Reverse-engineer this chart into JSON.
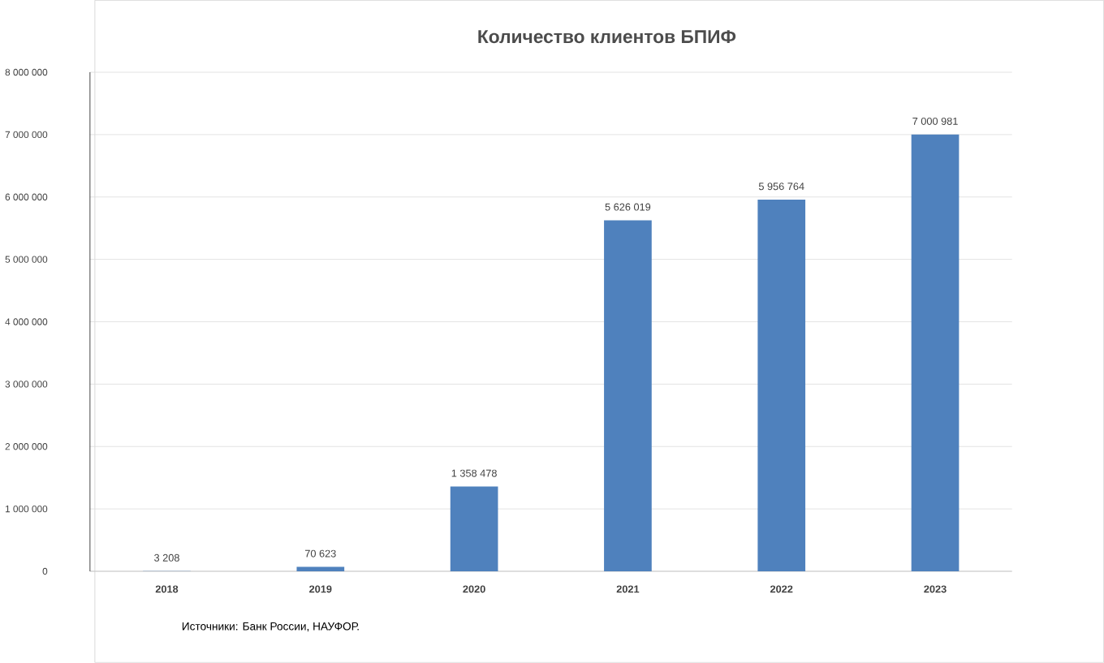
{
  "chart_data": {
    "type": "bar",
    "title": "Количество клиентов БПИФ",
    "categories": [
      "2018",
      "2019",
      "2020",
      "2021",
      "2022",
      "2023"
    ],
    "values": [
      3208,
      70623,
      1358478,
      5626019,
      5956764,
      7000981
    ],
    "value_labels": [
      "3 208",
      "70 623",
      "1 358 478",
      "5 626 019",
      "5 956 764",
      "7 000 981"
    ],
    "color": "#4f81bd",
    "ylim": [
      0,
      8000000
    ],
    "yticks": [
      0,
      {
        "value": 1000000,
        "label": "1 000 000"
      },
      {
        "value": 2000000,
        "label": "2 000 000"
      },
      {
        "value": 3000000,
        "label": "3 000 000"
      },
      {
        "value": 4000000,
        "label": "4 000 000"
      },
      {
        "value": 5000000,
        "label": "5 000 000"
      },
      {
        "value": 6000000,
        "label": "6 000 000"
      },
      {
        "value": 7000000,
        "label": "7 000 000"
      },
      {
        "value": 8000000,
        "label": "8 000 000"
      }
    ],
    "grid": "y",
    "annotations": [
      "Источники: Банк России, НАУФОР."
    ]
  }
}
